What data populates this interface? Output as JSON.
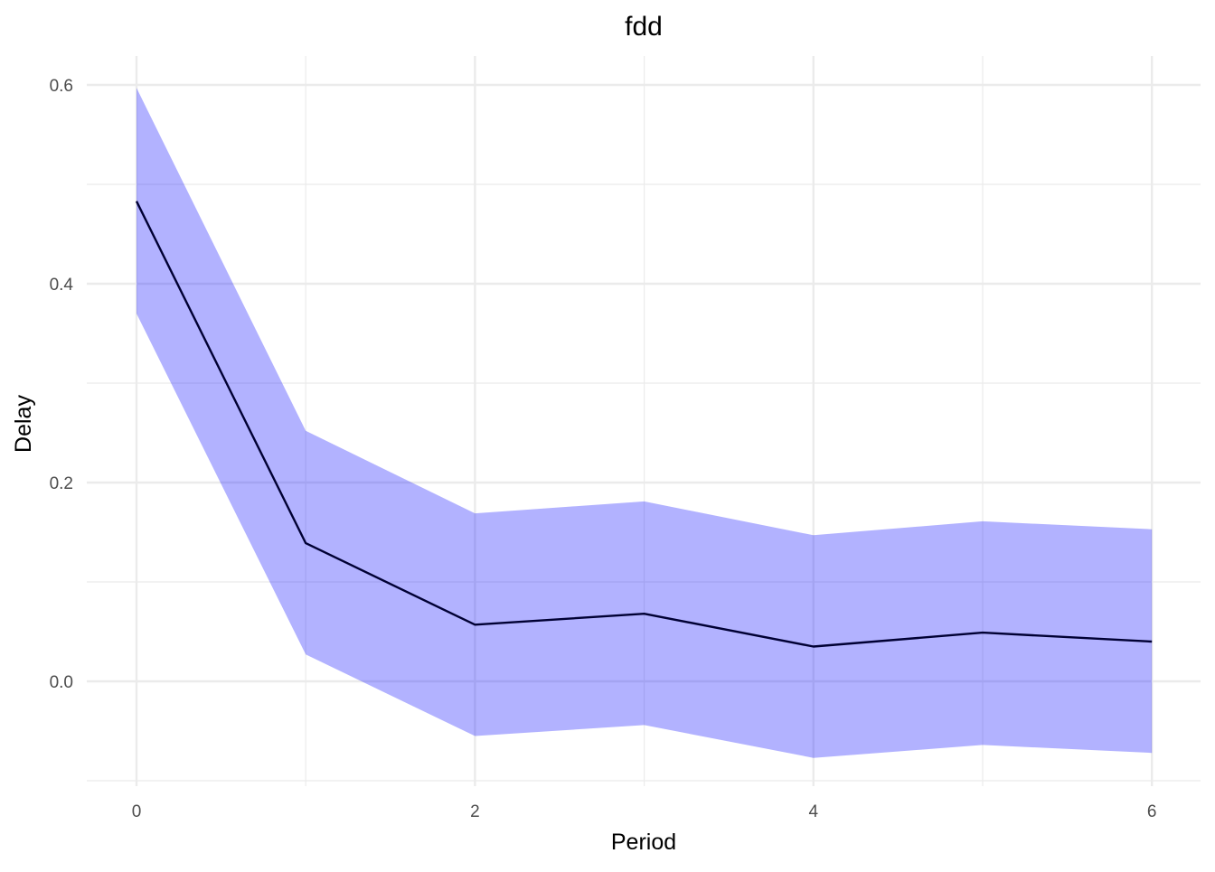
{
  "chart_data": {
    "type": "line",
    "title": "fdd",
    "xlabel": "Period",
    "ylabel": "Delay",
    "x": [
      0,
      1,
      2,
      3,
      4,
      5,
      6
    ],
    "series": [
      {
        "values": [
          0.483,
          0.139,
          0.057,
          0.068,
          0.035,
          0.049,
          0.04
        ],
        "lower": [
          0.37,
          0.027,
          -0.055,
          -0.044,
          -0.077,
          -0.064,
          -0.072
        ],
        "upper": [
          0.597,
          0.252,
          0.169,
          0.181,
          0.147,
          0.161,
          0.153
        ],
        "line_color": "#000033",
        "band_color": "#0000ff",
        "band_opacity": 0.3
      }
    ],
    "xticks": [
      0,
      2,
      4,
      6
    ],
    "xtick_labels": [
      "0",
      "2",
      "4",
      "6"
    ],
    "yticks": [
      0.0,
      0.2,
      0.4,
      0.6
    ],
    "ytick_labels": [
      "0.0",
      "0.2",
      "0.4",
      "0.6"
    ],
    "xlim": [
      -0.3,
      6.3
    ],
    "ylim": [
      -0.1,
      0.63
    ],
    "grid": true,
    "legend": "none",
    "grid_color": "#ebebeb",
    "background": "#ffffff"
  }
}
